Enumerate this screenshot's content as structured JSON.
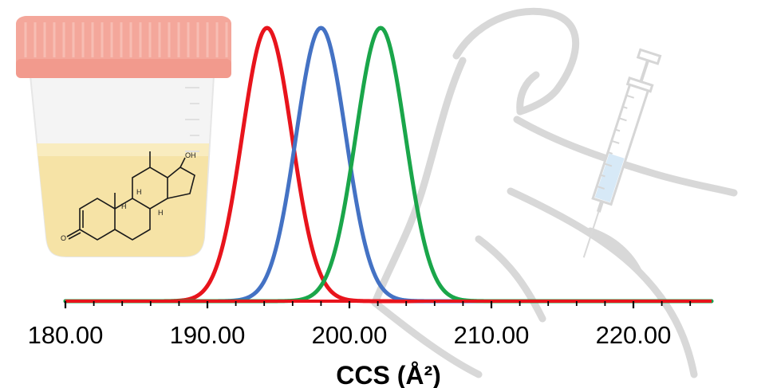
{
  "chart_data": {
    "type": "line",
    "title": "",
    "xlabel": "CCS (Å²)",
    "ylabel": "",
    "xlim": [
      180,
      225.5
    ],
    "ylim": [
      0,
      1
    ],
    "xticks": [
      "180.00",
      "190.00",
      "200.00",
      "210.00",
      "220.00"
    ],
    "xtick_values": [
      180,
      190,
      200,
      210,
      220
    ],
    "grid": false,
    "legend": "none",
    "series": [
      {
        "name": "red peak",
        "color": "#e8141c",
        "peak_center": 194.2,
        "peak_sigma": 1.75,
        "peak_height": 1.0
      },
      {
        "name": "blue peak",
        "color": "#4472c4",
        "peak_center": 198.0,
        "peak_sigma": 1.75,
        "peak_height": 1.0
      },
      {
        "name": "green peak",
        "color": "#1aa64a",
        "peak_center": 202.2,
        "peak_sigma": 1.75,
        "peak_height": 1.0
      }
    ],
    "axis_line_color": "#e8141c"
  },
  "illustration": {
    "molecule_label": "OH",
    "molecule_ketone_label": "O",
    "molecule_h_labels": [
      "H",
      "H",
      "H"
    ]
  }
}
